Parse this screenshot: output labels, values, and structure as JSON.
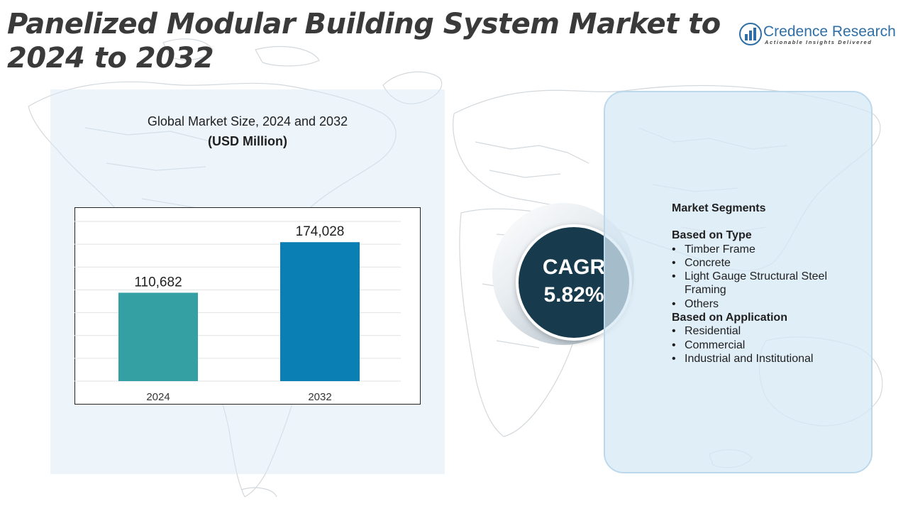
{
  "title": "Panelized Modular Building System Market to 2024 to 2032",
  "brand": {
    "name": "Credence Research",
    "tagline": "Actionable Insights Delivered",
    "icon": "bar-chart-icon",
    "color": "#2f6fa6"
  },
  "chart_title": "Global Market Size,  2024 and 2032",
  "chart_unit": "(USD Million)",
  "chart_data": {
    "type": "bar",
    "categories": [
      "2024",
      "2032"
    ],
    "values": [
      110682,
      174028
    ],
    "value_labels": [
      "110,682",
      "174,028"
    ],
    "colors": [
      "#34a0a4",
      "#0a7fb3"
    ],
    "ylim": [
      0,
      200000
    ],
    "grid": true
  },
  "cagr": {
    "label": "CAGR",
    "value": "5.82%"
  },
  "segments": {
    "title": "Market Segments",
    "groups": [
      {
        "heading": "Based on Type",
        "items": [
          "Timber Frame",
          "Concrete",
          "Light Gauge Structural Steel Framing",
          "Others"
        ]
      },
      {
        "heading": "Based on Application",
        "items": [
          "Residential",
          "Commercial",
          "Industrial and Institutional"
        ]
      }
    ]
  }
}
